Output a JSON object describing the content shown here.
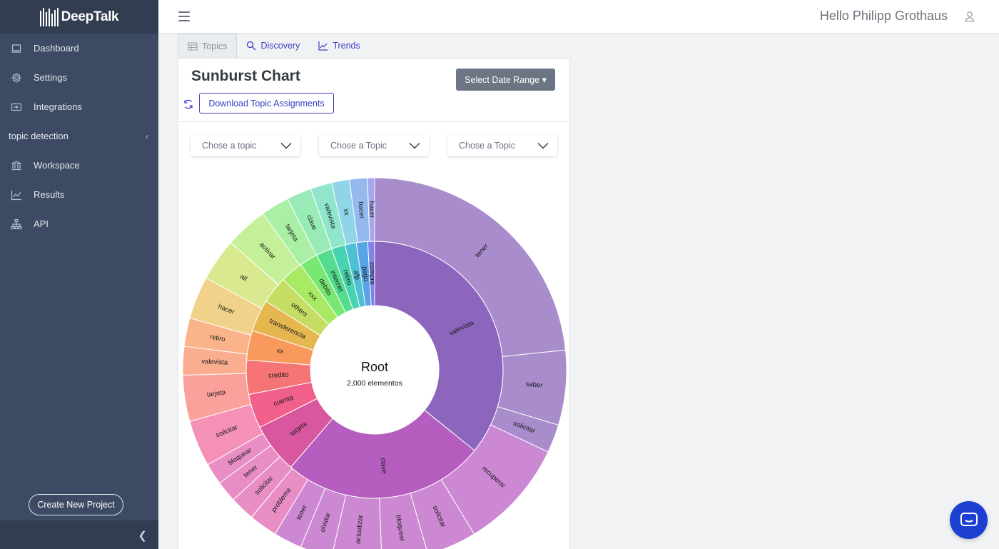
{
  "app": {
    "brand": "DeepTalk"
  },
  "sidebar": {
    "items": [
      {
        "label": "Dashboard",
        "icon": "laptop-icon"
      },
      {
        "label": "Settings",
        "icon": "gear-icon"
      },
      {
        "label": "Integrations",
        "icon": "integrations-icon"
      }
    ],
    "section": {
      "label": "topic detection"
    },
    "sub_items": [
      {
        "label": "Workspace",
        "icon": "bank-icon"
      },
      {
        "label": "Results",
        "icon": "line-chart-icon"
      },
      {
        "label": "API",
        "icon": "sitemap-icon"
      }
    ],
    "create_label": "Create New Project"
  },
  "header": {
    "greeting": "Hello Philipp Grothaus"
  },
  "tabs": [
    {
      "label": "Topics",
      "active": true
    },
    {
      "label": "Discovery",
      "active": false
    },
    {
      "label": "Trends",
      "active": false
    }
  ],
  "card": {
    "title": "Sunburst Chart",
    "date_range_label": "Select Date Range",
    "download_label": "Download Topic Assignments",
    "selects": [
      "Chose a topic",
      "Chose a Topic",
      "Chose a Topic"
    ]
  },
  "chart_data": {
    "type": "sunburst",
    "center_label": "Root",
    "center_sublabel": "2,000 elementos",
    "inner_ring": [
      {
        "label": "valevista",
        "share": 0.3472,
        "color": "#8c66bd"
      },
      {
        "label": "clave",
        "share": 0.2472,
        "color": "#b55ec0"
      },
      {
        "label": "tarjeta",
        "share": 0.0611,
        "color": "#d9579f"
      },
      {
        "label": "cuenta",
        "share": 0.0417,
        "color": "#f0608a"
      },
      {
        "label": "credito",
        "share": 0.0417,
        "color": "#f57475"
      },
      {
        "label": "xx",
        "share": 0.0361,
        "color": "#f99a5c"
      },
      {
        "label": "transferencia",
        "share": 0.0389,
        "color": "#e6b64f"
      },
      {
        "label": "others",
        "share": 0.0333,
        "color": "#c4dd62"
      },
      {
        "label": "xxx",
        "share": 0.0278,
        "color": "#a8ea63"
      },
      {
        "label": "debito",
        "share": 0.0222,
        "color": "#78e873"
      },
      {
        "label": "internet",
        "share": 0.0194,
        "color": "#55dd8f"
      },
      {
        "label": "retiro",
        "share": 0.0167,
        "color": "#48d3b0"
      },
      {
        "label": "afp",
        "share": 0.0139,
        "color": "#4ec0d6"
      },
      {
        "label": "pago",
        "share": 0.0139,
        "color": "#59a4e6"
      },
      {
        "label": "compra",
        "share": 0.0083,
        "color": "#7f84e8"
      }
    ],
    "outer_ring": [
      {
        "label": "tener",
        "share": 0.2167,
        "color": "#a88ccc"
      },
      {
        "label": "saber",
        "share": 0.0583,
        "color": "#a88ccc"
      },
      {
        "label": "solicitar",
        "share": 0.0222,
        "color": "#a88ccc"
      },
      {
        "label": "recuperar",
        "share": 0.0861,
        "color": "#cc88d2"
      },
      {
        "label": "solicitar",
        "share": 0.0389,
        "color": "#cc88d2"
      },
      {
        "label": "bloquear",
        "share": 0.0361,
        "color": "#cc88d2"
      },
      {
        "label": "actualizar",
        "share": 0.0389,
        "color": "#cc88d2"
      },
      {
        "label": "olvidar",
        "share": 0.025,
        "color": "#cc88d2"
      },
      {
        "label": "tener",
        "share": 0.0222,
        "color": "#cc88d2"
      },
      {
        "label": "problema",
        "share": 0.0222,
        "color": "#e88ec4"
      },
      {
        "label": "solicitar",
        "share": 0.0194,
        "color": "#e88ec4"
      },
      {
        "label": "tener",
        "share": 0.0167,
        "color": "#e88ec4"
      },
      {
        "label": "bloquear",
        "share": 0.0167,
        "color": "#e88ec4"
      },
      {
        "label": "solicitar",
        "share": 0.0361,
        "color": "#f590b6"
      },
      {
        "label": "tarjeta",
        "share": 0.0361,
        "color": "#f9a19a"
      },
      {
        "label": "valevista",
        "share": 0.0222,
        "color": "#fbae8f"
      },
      {
        "label": "retiro",
        "share": 0.0222,
        "color": "#fbb48a"
      },
      {
        "label": "hacer",
        "share": 0.0333,
        "color": "#f0d28a"
      },
      {
        "label": "all",
        "share": 0.0333,
        "color": "#d9e98f"
      },
      {
        "label": "activar",
        "share": 0.0333,
        "color": "#c4f09a"
      },
      {
        "label": "tarjeta",
        "share": 0.0222,
        "color": "#a9f0a5"
      },
      {
        "label": "clave",
        "share": 0.0194,
        "color": "#98ebb6"
      },
      {
        "label": "valevista",
        "share": 0.0167,
        "color": "#8fe6cc"
      },
      {
        "label": "xx",
        "share": 0.0139,
        "color": "#90d4e8"
      },
      {
        "label": "hacer",
        "share": 0.0139,
        "color": "#93b9ee"
      },
      {
        "label": "hacer",
        "share": 0.0056,
        "color": "#a4a8ee"
      }
    ]
  }
}
